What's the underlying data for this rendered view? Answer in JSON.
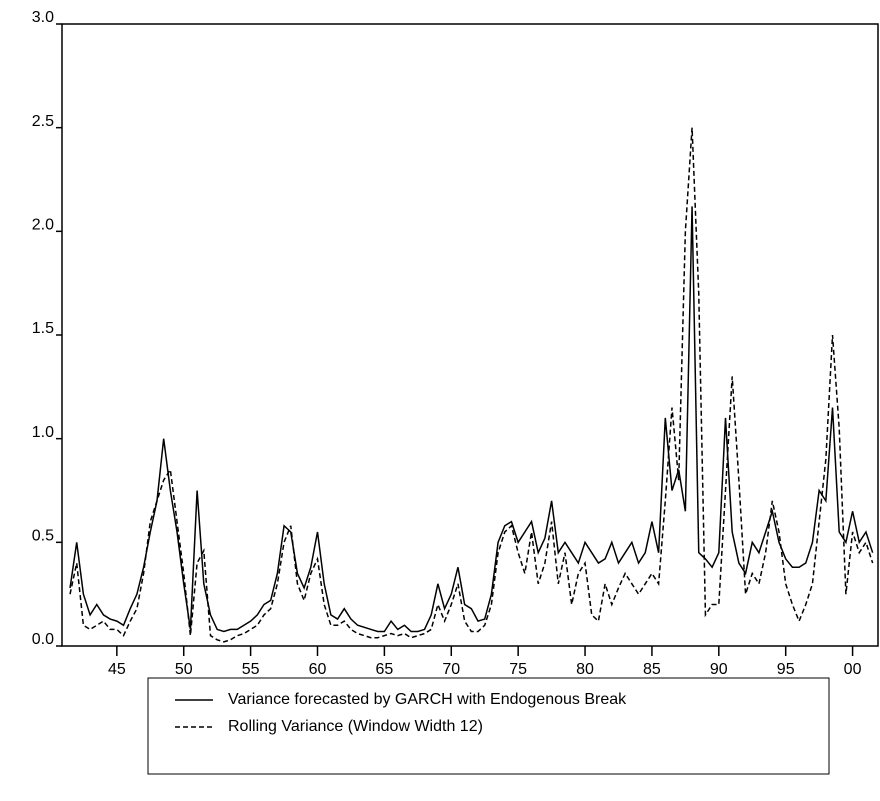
{
  "chart_data": {
    "type": "line",
    "x": [
      1941.5,
      1942,
      1942.5,
      1943,
      1943.5,
      1944,
      1944.5,
      1945,
      1945.5,
      1946,
      1946.5,
      1947,
      1947.5,
      1948,
      1948.5,
      1949,
      1949.5,
      1950,
      1950.5,
      1951,
      1951.5,
      1952,
      1952.5,
      1953,
      1953.5,
      1954,
      1954.5,
      1955,
      1955.5,
      1956,
      1956.5,
      1957,
      1957.5,
      1958,
      1958.5,
      1959,
      1959.5,
      1960,
      1960.5,
      1961,
      1961.5,
      1962,
      1962.5,
      1963,
      1963.5,
      1964,
      1964.5,
      1965,
      1965.5,
      1966,
      1966.5,
      1967,
      1967.5,
      1968,
      1968.5,
      1969,
      1969.5,
      1970,
      1970.5,
      1971,
      1971.5,
      1972,
      1972.5,
      1973,
      1973.5,
      1974,
      1974.5,
      1975,
      1975.5,
      1976,
      1976.5,
      1977,
      1977.5,
      1978,
      1978.5,
      1979,
      1979.5,
      1980,
      1980.5,
      1981,
      1981.5,
      1982,
      1982.5,
      1983,
      1983.5,
      1984,
      1984.5,
      1985,
      1985.5,
      1986,
      1986.5,
      1987,
      1987.5,
      1988,
      1988.5,
      1989,
      1989.5,
      1990,
      1990.5,
      1991,
      1991.5,
      1992,
      1992.5,
      1993,
      1993.5,
      1994,
      1994.5,
      1995,
      1995.5,
      1996,
      1996.5,
      1997,
      1997.5,
      1998,
      1998.5,
      1999,
      1999.5,
      2000,
      2000.5,
      2001,
      2001.5
    ],
    "series": [
      {
        "name": "Variance forecasted by GARCH with Endogenous Break",
        "color": "#000000",
        "dash": "solid",
        "values": [
          0.28,
          0.5,
          0.25,
          0.15,
          0.2,
          0.15,
          0.13,
          0.12,
          0.1,
          0.18,
          0.25,
          0.38,
          0.55,
          0.7,
          1.0,
          0.75,
          0.55,
          0.3,
          0.08,
          0.75,
          0.3,
          0.15,
          0.08,
          0.07,
          0.08,
          0.08,
          0.1,
          0.12,
          0.15,
          0.2,
          0.22,
          0.35,
          0.58,
          0.55,
          0.35,
          0.28,
          0.38,
          0.55,
          0.3,
          0.15,
          0.13,
          0.18,
          0.13,
          0.1,
          0.09,
          0.08,
          0.07,
          0.07,
          0.12,
          0.08,
          0.1,
          0.07,
          0.07,
          0.08,
          0.15,
          0.3,
          0.18,
          0.25,
          0.38,
          0.2,
          0.18,
          0.12,
          0.13,
          0.25,
          0.5,
          0.58,
          0.6,
          0.5,
          0.55,
          0.6,
          0.45,
          0.52,
          0.7,
          0.45,
          0.5,
          0.45,
          0.4,
          0.5,
          0.45,
          0.4,
          0.42,
          0.5,
          0.4,
          0.45,
          0.5,
          0.4,
          0.45,
          0.6,
          0.45,
          1.1,
          0.75,
          0.85,
          0.65,
          2.12,
          0.45,
          0.42,
          0.38,
          0.45,
          1.1,
          0.55,
          0.4,
          0.35,
          0.5,
          0.45,
          0.55,
          0.65,
          0.5,
          0.42,
          0.38,
          0.38,
          0.4,
          0.5,
          0.75,
          0.7,
          1.15,
          0.55,
          0.5,
          0.65,
          0.5,
          0.55,
          0.45
        ]
      },
      {
        "name": "Rolling Variance (Window Width 12)",
        "color": "#000000",
        "dash": "dashed",
        "values": [
          0.25,
          0.4,
          0.1,
          0.08,
          0.1,
          0.12,
          0.08,
          0.08,
          0.05,
          0.12,
          0.18,
          0.35,
          0.6,
          0.7,
          0.8,
          0.85,
          0.6,
          0.35,
          0.05,
          0.4,
          0.46,
          0.05,
          0.03,
          0.02,
          0.03,
          0.05,
          0.06,
          0.08,
          0.1,
          0.15,
          0.18,
          0.3,
          0.5,
          0.58,
          0.3,
          0.22,
          0.35,
          0.42,
          0.2,
          0.1,
          0.1,
          0.12,
          0.08,
          0.06,
          0.05,
          0.04,
          0.04,
          0.05,
          0.06,
          0.05,
          0.06,
          0.04,
          0.05,
          0.06,
          0.08,
          0.2,
          0.12,
          0.2,
          0.3,
          0.12,
          0.07,
          0.07,
          0.1,
          0.2,
          0.45,
          0.55,
          0.58,
          0.45,
          0.35,
          0.55,
          0.3,
          0.4,
          0.6,
          0.3,
          0.45,
          0.2,
          0.35,
          0.4,
          0.15,
          0.12,
          0.3,
          0.2,
          0.28,
          0.35,
          0.3,
          0.25,
          0.3,
          0.35,
          0.3,
          0.7,
          1.15,
          0.8,
          2.0,
          2.5,
          1.7,
          0.15,
          0.2,
          0.2,
          0.75,
          1.3,
          0.8,
          0.25,
          0.35,
          0.3,
          0.45,
          0.7,
          0.55,
          0.3,
          0.2,
          0.12,
          0.2,
          0.3,
          0.6,
          0.9,
          1.5,
          1.05,
          0.25,
          0.55,
          0.45,
          0.5,
          0.4
        ]
      }
    ],
    "xlim": [
      1940.9,
      2001.9
    ],
    "xticks": [
      {
        "value": 1945,
        "label": "45"
      },
      {
        "value": 1950,
        "label": "50"
      },
      {
        "value": 1955,
        "label": "55"
      },
      {
        "value": 1960,
        "label": "60"
      },
      {
        "value": 1965,
        "label": "65"
      },
      {
        "value": 1970,
        "label": "70"
      },
      {
        "value": 1975,
        "label": "75"
      },
      {
        "value": 1980,
        "label": "80"
      },
      {
        "value": 1985,
        "label": "85"
      },
      {
        "value": 1990,
        "label": "90"
      },
      {
        "value": 1995,
        "label": "95"
      },
      {
        "value": 2000,
        "label": "00"
      }
    ],
    "ylim": [
      0,
      3
    ],
    "yticks": [
      {
        "value": 0,
        "label": "0.0"
      },
      0.5,
      {
        "value": 1,
        "label": "1.0"
      },
      1.5,
      {
        "value": 2,
        "label": "2.0"
      },
      2.5,
      {
        "value": 3,
        "label": "3.0"
      }
    ],
    "legend": "bottom"
  }
}
